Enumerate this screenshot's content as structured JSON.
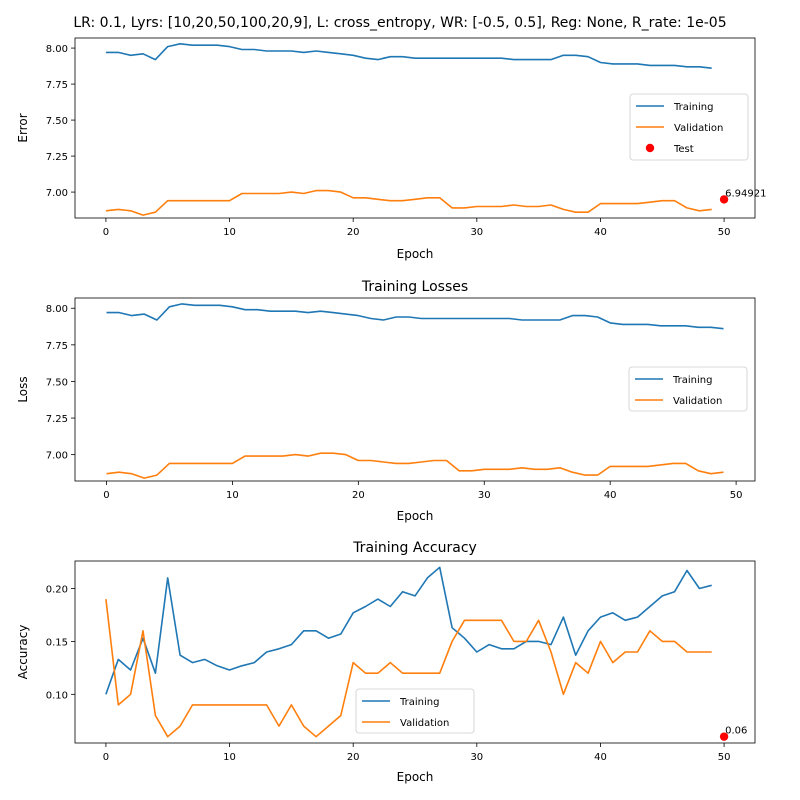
{
  "chart_data": [
    {
      "type": "line",
      "title": "LR: 0.1, Lyrs: [10,20,50,100,20,9], L: cross_entropy, WR: [-0.5, 0.5], Reg: None, R_rate: 1e-05",
      "xlabel": "Epoch",
      "ylabel": "Error",
      "xlim": [
        -2.5,
        52.5
      ],
      "ylim": [
        6.82,
        8.07
      ],
      "xticks": [
        "0",
        "10",
        "20",
        "30",
        "40",
        "50"
      ],
      "yticks": [
        "7.00",
        "7.25",
        "7.50",
        "7.75",
        "8.00"
      ],
      "legend": "center-right",
      "series": [
        {
          "name": "Training",
          "color": "#1f77b4",
          "x": [
            0,
            1,
            2,
            3,
            4,
            5,
            6,
            7,
            8,
            9,
            10,
            11,
            12,
            13,
            14,
            15,
            16,
            17,
            18,
            19,
            20,
            21,
            22,
            23,
            24,
            25,
            26,
            27,
            28,
            29,
            30,
            31,
            32,
            33,
            34,
            35,
            36,
            37,
            38,
            39,
            40,
            41,
            42,
            43,
            44,
            45,
            46,
            47,
            48,
            49
          ],
          "values": [
            7.97,
            7.97,
            7.95,
            7.96,
            7.92,
            8.01,
            8.03,
            8.02,
            8.02,
            8.02,
            8.01,
            7.99,
            7.99,
            7.98,
            7.98,
            7.98,
            7.97,
            7.98,
            7.97,
            7.96,
            7.95,
            7.93,
            7.92,
            7.94,
            7.94,
            7.93,
            7.93,
            7.93,
            7.93,
            7.93,
            7.93,
            7.93,
            7.93,
            7.92,
            7.92,
            7.92,
            7.92,
            7.95,
            7.95,
            7.94,
            7.9,
            7.89,
            7.89,
            7.89,
            7.88,
            7.88,
            7.88,
            7.87,
            7.87,
            7.86
          ]
        },
        {
          "name": "Validation",
          "color": "#ff7f0e",
          "x": [
            0,
            1,
            2,
            3,
            4,
            5,
            6,
            7,
            8,
            9,
            10,
            11,
            12,
            13,
            14,
            15,
            16,
            17,
            18,
            19,
            20,
            21,
            22,
            23,
            24,
            25,
            26,
            27,
            28,
            29,
            30,
            31,
            32,
            33,
            34,
            35,
            36,
            37,
            38,
            39,
            40,
            41,
            42,
            43,
            44,
            45,
            46,
            47,
            48,
            49
          ],
          "values": [
            6.87,
            6.88,
            6.87,
            6.84,
            6.86,
            6.94,
            6.94,
            6.94,
            6.94,
            6.94,
            6.94,
            6.99,
            6.99,
            6.99,
            6.99,
            7.0,
            6.99,
            7.01,
            7.01,
            7.0,
            6.96,
            6.96,
            6.95,
            6.94,
            6.94,
            6.95,
            6.96,
            6.96,
            6.89,
            6.89,
            6.9,
            6.9,
            6.9,
            6.91,
            6.9,
            6.9,
            6.91,
            6.88,
            6.86,
            6.86,
            6.92,
            6.92,
            6.92,
            6.92,
            6.93,
            6.94,
            6.94,
            6.89,
            6.87,
            6.88
          ]
        }
      ],
      "points": [
        {
          "name": "Test",
          "color": "#ff0000",
          "x": 50,
          "y": 6.94921,
          "label": "6.94921"
        }
      ]
    },
    {
      "type": "line",
      "title": "Training Losses",
      "xlabel": "Epoch",
      "ylabel": "Loss",
      "xlim": [
        -2.5,
        51.5
      ],
      "ylim": [
        6.82,
        8.07
      ],
      "xticks": [
        "0",
        "10",
        "20",
        "30",
        "40",
        "50"
      ],
      "yticks": [
        "7.00",
        "7.25",
        "7.50",
        "7.75",
        "8.00"
      ],
      "legend": "center-right",
      "series": [
        {
          "name": "Training",
          "color": "#1f77b4",
          "x": [
            0,
            1,
            2,
            3,
            4,
            5,
            6,
            7,
            8,
            9,
            10,
            11,
            12,
            13,
            14,
            15,
            16,
            17,
            18,
            19,
            20,
            21,
            22,
            23,
            24,
            25,
            26,
            27,
            28,
            29,
            30,
            31,
            32,
            33,
            34,
            35,
            36,
            37,
            38,
            39,
            40,
            41,
            42,
            43,
            44,
            45,
            46,
            47,
            48,
            49
          ],
          "values": [
            7.97,
            7.97,
            7.95,
            7.96,
            7.92,
            8.01,
            8.03,
            8.02,
            8.02,
            8.02,
            8.01,
            7.99,
            7.99,
            7.98,
            7.98,
            7.98,
            7.97,
            7.98,
            7.97,
            7.96,
            7.95,
            7.93,
            7.92,
            7.94,
            7.94,
            7.93,
            7.93,
            7.93,
            7.93,
            7.93,
            7.93,
            7.93,
            7.93,
            7.92,
            7.92,
            7.92,
            7.92,
            7.95,
            7.95,
            7.94,
            7.9,
            7.89,
            7.89,
            7.89,
            7.88,
            7.88,
            7.88,
            7.87,
            7.87,
            7.86
          ]
        },
        {
          "name": "Validation",
          "color": "#ff7f0e",
          "x": [
            0,
            1,
            2,
            3,
            4,
            5,
            6,
            7,
            8,
            9,
            10,
            11,
            12,
            13,
            14,
            15,
            16,
            17,
            18,
            19,
            20,
            21,
            22,
            23,
            24,
            25,
            26,
            27,
            28,
            29,
            30,
            31,
            32,
            33,
            34,
            35,
            36,
            37,
            38,
            39,
            40,
            41,
            42,
            43,
            44,
            45,
            46,
            47,
            48,
            49
          ],
          "values": [
            6.87,
            6.88,
            6.87,
            6.84,
            6.86,
            6.94,
            6.94,
            6.94,
            6.94,
            6.94,
            6.94,
            6.99,
            6.99,
            6.99,
            6.99,
            7.0,
            6.99,
            7.01,
            7.01,
            7.0,
            6.96,
            6.96,
            6.95,
            6.94,
            6.94,
            6.95,
            6.96,
            6.96,
            6.89,
            6.89,
            6.9,
            6.9,
            6.9,
            6.91,
            6.9,
            6.9,
            6.91,
            6.88,
            6.86,
            6.86,
            6.92,
            6.92,
            6.92,
            6.92,
            6.93,
            6.94,
            6.94,
            6.89,
            6.87,
            6.88
          ]
        }
      ]
    },
    {
      "type": "line",
      "title": "Training Accuracy",
      "xlabel": "Epoch",
      "ylabel": "Accuracy",
      "xlim": [
        -2.5,
        52.5
      ],
      "ylim": [
        0.054,
        0.226
      ],
      "xticks": [
        "0",
        "10",
        "20",
        "30",
        "40",
        "50"
      ],
      "yticks": [
        "0.10",
        "0.15",
        "0.20"
      ],
      "legend": "lower-center",
      "series": [
        {
          "name": "Training",
          "color": "#1f77b4",
          "x": [
            0,
            1,
            2,
            3,
            4,
            5,
            6,
            7,
            8,
            9,
            10,
            11,
            12,
            13,
            14,
            15,
            16,
            17,
            18,
            19,
            20,
            21,
            22,
            23,
            24,
            25,
            26,
            27,
            28,
            29,
            30,
            31,
            32,
            33,
            34,
            35,
            36,
            37,
            38,
            39,
            40,
            41,
            42,
            43,
            44,
            45,
            46,
            47,
            48,
            49
          ],
          "values": [
            0.1,
            0.133,
            0.123,
            0.153,
            0.12,
            0.21,
            0.137,
            0.13,
            0.133,
            0.127,
            0.123,
            0.127,
            0.13,
            0.14,
            0.143,
            0.147,
            0.16,
            0.16,
            0.153,
            0.157,
            0.177,
            0.183,
            0.19,
            0.183,
            0.197,
            0.193,
            0.21,
            0.22,
            0.163,
            0.153,
            0.14,
            0.147,
            0.143,
            0.143,
            0.15,
            0.15,
            0.147,
            0.173,
            0.137,
            0.16,
            0.173,
            0.177,
            0.17,
            0.173,
            0.183,
            0.193,
            0.197,
            0.217,
            0.2,
            0.203
          ]
        },
        {
          "name": "Validation",
          "color": "#ff7f0e",
          "x": [
            0,
            1,
            2,
            3,
            4,
            5,
            6,
            7,
            8,
            9,
            10,
            11,
            12,
            13,
            14,
            15,
            16,
            17,
            18,
            19,
            20,
            21,
            22,
            23,
            24,
            25,
            26,
            27,
            28,
            29,
            30,
            31,
            32,
            33,
            34,
            35,
            36,
            37,
            38,
            39,
            40,
            41,
            42,
            43,
            44,
            45,
            46,
            47,
            48,
            49
          ],
          "values": [
            0.19,
            0.09,
            0.1,
            0.16,
            0.08,
            0.06,
            0.07,
            0.09,
            0.09,
            0.09,
            0.09,
            0.09,
            0.09,
            0.09,
            0.07,
            0.09,
            0.07,
            0.06,
            0.07,
            0.08,
            0.13,
            0.12,
            0.12,
            0.13,
            0.12,
            0.12,
            0.12,
            0.12,
            0.15,
            0.17,
            0.17,
            0.17,
            0.17,
            0.15,
            0.15,
            0.17,
            0.14,
            0.1,
            0.13,
            0.12,
            0.15,
            0.13,
            0.14,
            0.14,
            0.16,
            0.15,
            0.15,
            0.14,
            0.14,
            0.14
          ]
        }
      ],
      "points": [
        {
          "name": "",
          "color": "#ff0000",
          "x": 50,
          "y": 0.06,
          "label": "0.06"
        }
      ]
    }
  ]
}
